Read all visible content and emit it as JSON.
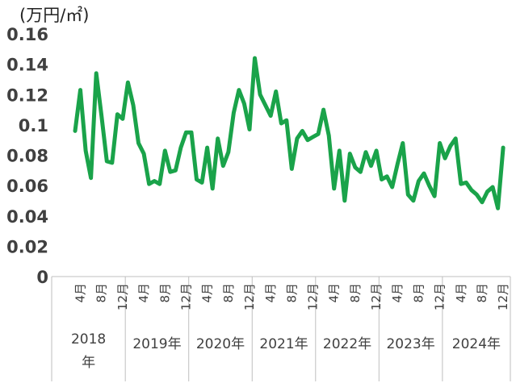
{
  "chart_data": {
    "type": "line",
    "ylabel": "(万円/㎡)",
    "ylim": [
      0,
      0.16
    ],
    "yticks": [
      "0",
      "0.02",
      "0.04",
      "0.06",
      "0.08",
      "0.1",
      "0.12",
      "0.14",
      "0.16"
    ],
    "grid": false,
    "line_color": "#1aa34a",
    "month_ticks": [
      {
        "i": 1,
        "label": "4月"
      },
      {
        "i": 5,
        "label": "8月"
      },
      {
        "i": 9,
        "label": "12月"
      },
      {
        "i": 13,
        "label": "4月"
      },
      {
        "i": 17,
        "label": "8月"
      },
      {
        "i": 21,
        "label": "12月"
      },
      {
        "i": 25,
        "label": "4月"
      },
      {
        "i": 29,
        "label": "8月"
      },
      {
        "i": 33,
        "label": "12月"
      },
      {
        "i": 37,
        "label": "4月"
      },
      {
        "i": 41,
        "label": "8月"
      },
      {
        "i": 45,
        "label": "12月"
      },
      {
        "i": 49,
        "label": "4月"
      },
      {
        "i": 53,
        "label": "8月"
      },
      {
        "i": 57,
        "label": "12月"
      },
      {
        "i": 61,
        "label": "4月"
      },
      {
        "i": 65,
        "label": "8月"
      },
      {
        "i": 69,
        "label": "12月"
      },
      {
        "i": 73,
        "label": "4月"
      },
      {
        "i": 77,
        "label": "8月"
      },
      {
        "i": 81,
        "label": "12月"
      }
    ],
    "year_groups": [
      {
        "label": "2018\n年",
        "start": 0,
        "end": 9.5
      },
      {
        "label": "2019年",
        "start": 9.5,
        "end": 21.5
      },
      {
        "label": "2020年",
        "start": 21.5,
        "end": 33.5
      },
      {
        "label": "2021年",
        "start": 33.5,
        "end": 45.5
      },
      {
        "label": "2022年",
        "start": 45.5,
        "end": 57.5
      },
      {
        "label": "2023年",
        "start": 57.5,
        "end": 69.5
      },
      {
        "label": "2024年",
        "start": 69.5,
        "end": 81.5
      }
    ],
    "series": [
      {
        "x": [
          "2018-03",
          "2018-04",
          "2018-05",
          "2018-06",
          "2018-07",
          "2018-08",
          "2018-09",
          "2018-10",
          "2018-11",
          "2018-12",
          "2019-01",
          "2019-02",
          "2019-03",
          "2019-04",
          "2019-05",
          "2019-06",
          "2019-07",
          "2019-08",
          "2019-09",
          "2019-10",
          "2019-11",
          "2019-12",
          "2020-01",
          "2020-02",
          "2020-03",
          "2020-04",
          "2020-05",
          "2020-06",
          "2020-07",
          "2020-08",
          "2020-09",
          "2020-10",
          "2020-11",
          "2020-12",
          "2021-01",
          "2021-02",
          "2021-03",
          "2021-04",
          "2021-05",
          "2021-06",
          "2021-07",
          "2021-08",
          "2021-09",
          "2021-10",
          "2021-11",
          "2021-12",
          "2022-01",
          "2022-02",
          "2022-03",
          "2022-04",
          "2022-05",
          "2022-06",
          "2022-07",
          "2022-08",
          "2022-09",
          "2022-10",
          "2022-11",
          "2022-12",
          "2023-01",
          "2023-02",
          "2023-03",
          "2023-04",
          "2023-05",
          "2023-06",
          "2023-07",
          "2023-08",
          "2023-09",
          "2023-10",
          "2023-11",
          "2023-12",
          "2024-01",
          "2024-02",
          "2024-03",
          "2024-04",
          "2024-05",
          "2024-06",
          "2024-07",
          "2024-08",
          "2024-09",
          "2024-10",
          "2024-11",
          "2024-12"
        ],
        "values": [
          0.096,
          0.123,
          0.083,
          0.065,
          0.134,
          0.106,
          0.076,
          0.075,
          0.107,
          0.104,
          0.128,
          0.113,
          0.088,
          0.081,
          0.061,
          0.063,
          0.061,
          0.083,
          0.069,
          0.07,
          0.085,
          0.095,
          0.095,
          0.064,
          0.062,
          0.085,
          0.058,
          0.091,
          0.073,
          0.082,
          0.108,
          0.123,
          0.114,
          0.097,
          0.144,
          0.12,
          0.113,
          0.106,
          0.122,
          0.101,
          0.103,
          0.071,
          0.091,
          0.096,
          0.09,
          0.092,
          0.094,
          0.11,
          0.093,
          0.058,
          0.083,
          0.05,
          0.081,
          0.072,
          0.069,
          0.082,
          0.073,
          0.083,
          0.064,
          0.066,
          0.059,
          0.074,
          0.088,
          0.054,
          0.05,
          0.063,
          0.068,
          0.06,
          0.053,
          0.088,
          0.078,
          0.086,
          0.091,
          0.061,
          0.062,
          0.057,
          0.054,
          0.049,
          0.056,
          0.059,
          0.045,
          0.085
        ]
      }
    ]
  }
}
